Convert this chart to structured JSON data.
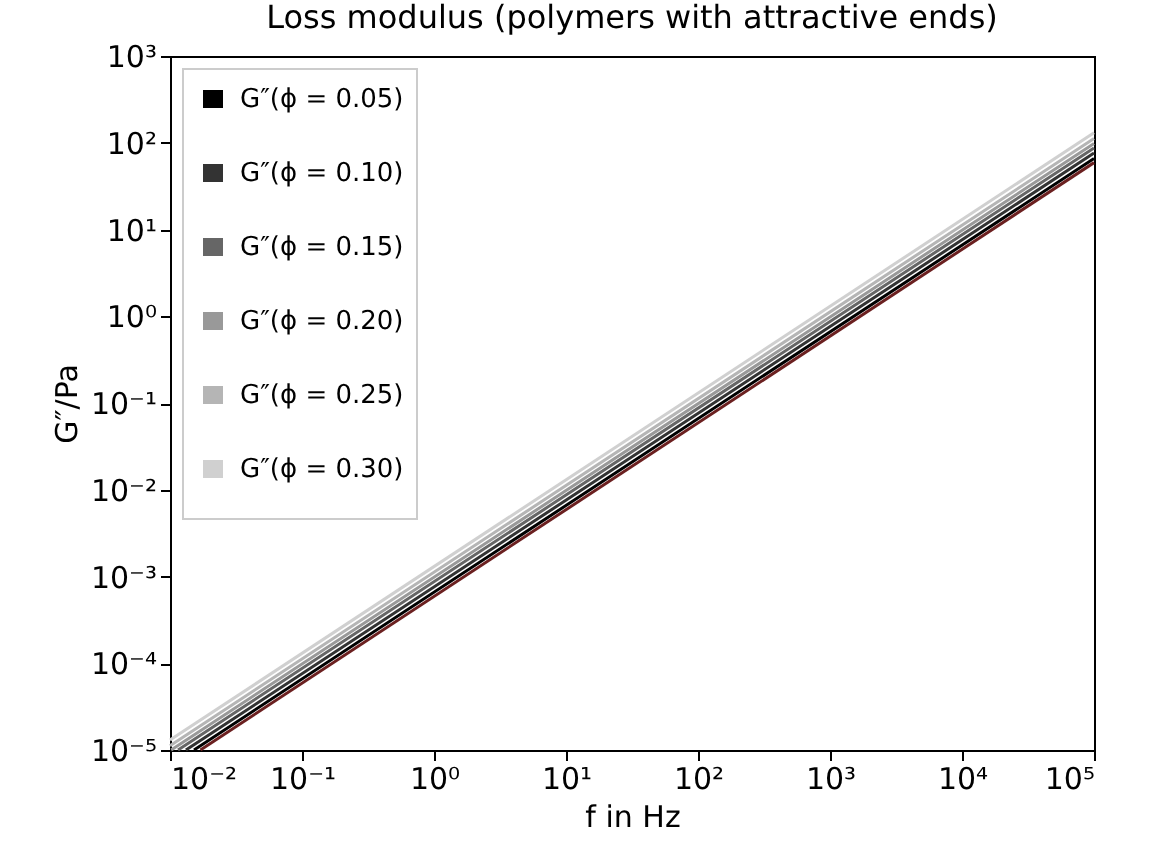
{
  "chart_data": {
    "type": "line",
    "title": "Loss modulus (polymers with attractive ends)",
    "xlabel": "f in Hz",
    "ylabel": "G″/Pa",
    "x": [
      0.01,
      100000
    ],
    "series": [
      {
        "color": "#6b2020",
        "x": [
          0.017,
          100000
        ],
        "values": [
          1e-05,
          59
        ]
      },
      {
        "name": "G″(ϕ = 0.05)",
        "color": "#000000",
        "x": [
          0.0152,
          100000
        ],
        "values": [
          1e-05,
          66
        ]
      },
      {
        "name": "G″(ϕ = 0.10)",
        "color": "#333333",
        "x": [
          0.0132,
          100000
        ],
        "values": [
          1e-05,
          76
        ]
      },
      {
        "name": "G″(ϕ = 0.15)",
        "color": "#666666",
        "x": [
          0.0115,
          100000
        ],
        "values": [
          1e-05,
          87
        ]
      },
      {
        "name": "G″(ϕ = 0.20)",
        "color": "#999999",
        "x": [
          0.0102,
          100000
        ],
        "values": [
          1e-05,
          98
        ]
      },
      {
        "name": "G″(ϕ = 0.25)",
        "color": "#b5b5b5",
        "values": [
          1.12e-05,
          112
        ]
      },
      {
        "name": "G″(ϕ = 0.30)",
        "color": "#d0d0d0",
        "values": [
          1.3e-05,
          130
        ]
      }
    ],
    "log": "xy",
    "xlim": [
      0.01,
      100000
    ],
    "ylim": [
      1e-05,
      1000
    ],
    "xticks": [
      {
        "value": 0.01,
        "label": "10⁻²"
      },
      {
        "value": 0.1,
        "label": "10⁻¹"
      },
      {
        "value": 1,
        "label": "10⁰"
      },
      {
        "value": 10,
        "label": "10¹"
      },
      {
        "value": 100,
        "label": "10²"
      },
      {
        "value": 1000,
        "label": "10³"
      },
      {
        "value": 10000,
        "label": "10⁴"
      },
      {
        "value": 100000,
        "label": "10⁵"
      }
    ],
    "yticks": [
      {
        "value": 1e-05,
        "label": "10⁻⁵"
      },
      {
        "value": 0.0001,
        "label": "10⁻⁴"
      },
      {
        "value": 0.001,
        "label": "10⁻³"
      },
      {
        "value": 0.01,
        "label": "10⁻²"
      },
      {
        "value": 0.1,
        "label": "10⁻¹"
      },
      {
        "value": 1,
        "label": "10⁰"
      },
      {
        "value": 10,
        "label": "10¹"
      },
      {
        "value": 100,
        "label": "10²"
      },
      {
        "value": 1000,
        "label": "10³"
      }
    ],
    "grid": false,
    "legend": "top left",
    "marker": "none",
    "line_style": "solid"
  }
}
